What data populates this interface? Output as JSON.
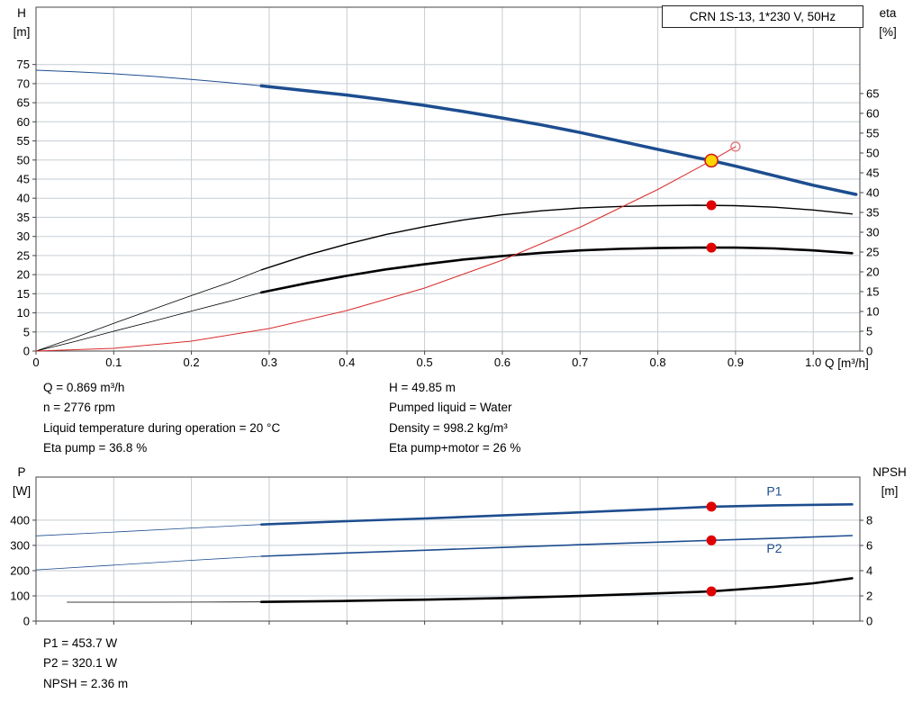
{
  "chart_data": [
    {
      "id": "qh-eta",
      "type": "line",
      "title": "CRN 1S-13, 1*230 V, 50Hz",
      "left_axis_title": [
        "H",
        "[m]"
      ],
      "right_axis_title": [
        "eta",
        "[%]"
      ],
      "x_axis_title": "Q [m³/h]",
      "x": {
        "min": 0,
        "max": 1.06,
        "ticks": [
          0,
          0.1,
          0.2,
          0.3,
          0.4,
          0.5,
          0.6,
          0.7,
          0.8,
          0.9,
          1.0
        ],
        "labels": [
          "0",
          "0.1",
          "0.2",
          "0.3",
          "0.4",
          "0.5",
          "0.6",
          "0.7",
          "0.8",
          "0.9",
          "1.0"
        ]
      },
      "left": {
        "min": 0,
        "max": 90,
        "ticks": [
          0,
          5,
          10,
          15,
          20,
          25,
          30,
          35,
          40,
          45,
          50,
          55,
          60,
          65,
          70,
          75
        ]
      },
      "right": {
        "min": 0,
        "max": 86.8,
        "ticks": [
          0,
          5,
          10,
          15,
          20,
          25,
          30,
          35,
          40,
          45,
          50,
          55,
          60,
          65
        ]
      },
      "series": [
        {
          "name": "pump-curve-lead",
          "axis": "left",
          "color": "#1d4d8f",
          "width": 1,
          "points": [
            [
              0,
              73.5
            ],
            [
              0.05,
              73.1
            ],
            [
              0.1,
              72.6
            ],
            [
              0.15,
              71.9
            ],
            [
              0.2,
              71.1
            ],
            [
              0.25,
              70.2
            ],
            [
              0.29,
              69.4
            ]
          ]
        },
        {
          "name": "pump-curve",
          "axis": "left",
          "color": "#1d4d8f",
          "width": 3.5,
          "points": [
            [
              0.29,
              69.4
            ],
            [
              0.35,
              68.1
            ],
            [
              0.4,
              67.0
            ],
            [
              0.45,
              65.7
            ],
            [
              0.5,
              64.3
            ],
            [
              0.55,
              62.7
            ],
            [
              0.6,
              61.0
            ],
            [
              0.65,
              59.2
            ],
            [
              0.7,
              57.2
            ],
            [
              0.75,
              55.0
            ],
            [
              0.8,
              52.8
            ],
            [
              0.85,
              50.6
            ],
            [
              0.869,
              49.85
            ],
            [
              0.9,
              48.4
            ],
            [
              0.95,
              45.9
            ],
            [
              1.0,
              43.4
            ],
            [
              1.055,
              41.0
            ]
          ]
        },
        {
          "name": "eta-pump-lead",
          "axis": "right",
          "color": "#000000",
          "width": 0.8,
          "points": [
            [
              0,
              0
            ],
            [
              0.05,
              3.4
            ],
            [
              0.1,
              7
            ],
            [
              0.15,
              10.5
            ],
            [
              0.2,
              14
            ],
            [
              0.25,
              17.4
            ],
            [
              0.29,
              20.5
            ]
          ]
        },
        {
          "name": "eta-pump-curve",
          "axis": "right",
          "color": "#000000",
          "width": 1.4,
          "points": [
            [
              0.29,
              20.5
            ],
            [
              0.35,
              24.3
            ],
            [
              0.4,
              27
            ],
            [
              0.45,
              29.4
            ],
            [
              0.5,
              31.4
            ],
            [
              0.55,
              33.1
            ],
            [
              0.6,
              34.4
            ],
            [
              0.65,
              35.4
            ],
            [
              0.7,
              36.1
            ],
            [
              0.75,
              36.5
            ],
            [
              0.8,
              36.7
            ],
            [
              0.85,
              36.8
            ],
            [
              0.9,
              36.7
            ],
            [
              0.95,
              36.3
            ],
            [
              1.0,
              35.6
            ],
            [
              1.05,
              34.6
            ]
          ]
        },
        {
          "name": "eta-pump-motor-lead",
          "axis": "right",
          "color": "#000000",
          "width": 0.8,
          "points": [
            [
              0,
              0
            ],
            [
              0.05,
              2.4
            ],
            [
              0.1,
              5
            ],
            [
              0.15,
              7.5
            ],
            [
              0.2,
              10.1
            ],
            [
              0.25,
              12.6
            ],
            [
              0.29,
              14.8
            ]
          ]
        },
        {
          "name": "eta-pump-motor-curve",
          "axis": "right",
          "color": "#000000",
          "width": 2.6,
          "points": [
            [
              0.29,
              14.8
            ],
            [
              0.35,
              17.2
            ],
            [
              0.4,
              19
            ],
            [
              0.45,
              20.6
            ],
            [
              0.5,
              21.9
            ],
            [
              0.55,
              23.1
            ],
            [
              0.6,
              24
            ],
            [
              0.65,
              24.8
            ],
            [
              0.7,
              25.4
            ],
            [
              0.75,
              25.8
            ],
            [
              0.8,
              26
            ],
            [
              0.85,
              26.1
            ],
            [
              0.9,
              26.1
            ],
            [
              0.95,
              25.9
            ],
            [
              1.0,
              25.4
            ],
            [
              1.05,
              24.7
            ]
          ]
        },
        {
          "name": "system-curve",
          "axis": "left",
          "color": "#d92b2b",
          "width": 1,
          "points": [
            [
              0,
              0
            ],
            [
              0.1,
              0.7
            ],
            [
              0.2,
              2.6
            ],
            [
              0.3,
              5.9
            ],
            [
              0.4,
              10.6
            ],
            [
              0.5,
              16.5
            ],
            [
              0.6,
              23.8
            ],
            [
              0.7,
              32.4
            ],
            [
              0.8,
              42.3
            ],
            [
              0.869,
              49.85
            ],
            [
              0.9,
              53.5
            ]
          ]
        }
      ],
      "markers": [
        {
          "name": "eta-pump-point",
          "x": 0.869,
          "y": 36.8,
          "axis": "right",
          "r": 5.5,
          "fill": "#e00000",
          "stroke": "none",
          "sw": 0
        },
        {
          "name": "eta-pump-motor-point",
          "x": 0.869,
          "y": 26.1,
          "axis": "right",
          "r": 5.5,
          "fill": "#e00000",
          "stroke": "none",
          "sw": 0
        },
        {
          "name": "requested-duty-point",
          "x": 0.9,
          "y": 53.5,
          "axis": "left",
          "r": 5,
          "fill": "none",
          "stroke": "#e57373",
          "sw": 1.3
        },
        {
          "name": "duty-point",
          "x": 0.869,
          "y": 49.85,
          "axis": "left",
          "r": 7,
          "fill": "#ffd500",
          "stroke": "#cc2020",
          "sw": 1.6
        }
      ],
      "labels": []
    },
    {
      "id": "power-npsh",
      "type": "line",
      "left_axis_title": [
        "P",
        "[W]"
      ],
      "right_axis_title": [
        "NPSH",
        "[m]"
      ],
      "x": {
        "min": 0,
        "max": 1.06,
        "ticks": [
          0,
          0.1,
          0.2,
          0.3,
          0.4,
          0.5,
          0.6,
          0.7,
          0.8,
          0.9,
          1.0
        ]
      },
      "left": {
        "min": 0,
        "max": 571,
        "ticks": [
          0,
          100,
          200,
          300,
          400
        ]
      },
      "right": {
        "min": 0,
        "max": 11.43,
        "ticks": [
          0,
          2,
          4,
          6,
          8
        ]
      },
      "series": [
        {
          "name": "p1-lead",
          "axis": "left",
          "color": "#1d4d8f",
          "width": 0.8,
          "points": [
            [
              0,
              338
            ],
            [
              0.1,
              353
            ],
            [
              0.2,
              369
            ],
            [
              0.29,
              383
            ]
          ]
        },
        {
          "name": "p1-curve",
          "axis": "left",
          "color": "#1d4d8f",
          "width": 2.6,
          "points": [
            [
              0.29,
              383
            ],
            [
              0.4,
              396
            ],
            [
              0.5,
              407
            ],
            [
              0.6,
              419
            ],
            [
              0.7,
              431
            ],
            [
              0.8,
              444
            ],
            [
              0.869,
              453.7
            ],
            [
              0.95,
              459
            ],
            [
              1.05,
              463
            ]
          ]
        },
        {
          "name": "p2-lead",
          "axis": "left",
          "color": "#1d4d8f",
          "width": 0.8,
          "points": [
            [
              0,
              203
            ],
            [
              0.1,
              222
            ],
            [
              0.2,
              241
            ],
            [
              0.29,
              257
            ]
          ]
        },
        {
          "name": "p2-curve",
          "axis": "left",
          "color": "#1d4d8f",
          "width": 1.6,
          "points": [
            [
              0.29,
              257
            ],
            [
              0.4,
              270
            ],
            [
              0.5,
              281
            ],
            [
              0.6,
              292
            ],
            [
              0.7,
              303
            ],
            [
              0.8,
              313
            ],
            [
              0.869,
              320.1
            ],
            [
              0.95,
              328
            ],
            [
              1.05,
              339
            ]
          ]
        },
        {
          "name": "npsh-lead",
          "axis": "right",
          "color": "#000000",
          "width": 0.8,
          "points": [
            [
              0.04,
              1.5
            ],
            [
              0.15,
              1.5
            ],
            [
              0.22,
              1.51
            ],
            [
              0.29,
              1.52
            ]
          ]
        },
        {
          "name": "npsh-curve",
          "axis": "right",
          "color": "#000000",
          "width": 2.6,
          "points": [
            [
              0.29,
              1.52
            ],
            [
              0.4,
              1.6
            ],
            [
              0.5,
              1.7
            ],
            [
              0.6,
              1.83
            ],
            [
              0.7,
              1.99
            ],
            [
              0.8,
              2.2
            ],
            [
              0.869,
              2.36
            ],
            [
              0.95,
              2.72
            ],
            [
              1.0,
              3.0
            ],
            [
              1.05,
              3.4
            ]
          ]
        }
      ],
      "markers": [
        {
          "name": "p1-point",
          "x": 0.869,
          "y": 453.7,
          "axis": "left",
          "r": 5.5,
          "fill": "#e00000",
          "stroke": "none",
          "sw": 0
        },
        {
          "name": "p2-point",
          "x": 0.869,
          "y": 320.1,
          "axis": "left",
          "r": 5.5,
          "fill": "#e00000",
          "stroke": "none",
          "sw": 0
        },
        {
          "name": "npsh-point",
          "x": 0.869,
          "y": 2.36,
          "axis": "right",
          "r": 5.5,
          "fill": "#e00000",
          "stroke": "none",
          "sw": 0
        }
      ],
      "labels": [
        {
          "text": "P1",
          "x": 0.94,
          "y": 497,
          "axis": "left",
          "color": "#1d4d8f"
        },
        {
          "text": "P2",
          "x": 0.94,
          "y": 272,
          "axis": "left",
          "color": "#1d4d8f"
        }
      ]
    }
  ],
  "annotations": {
    "mid_left": [
      "Q = 0.869 m³/h",
      "n = 2776 rpm",
      "Liquid temperature during operation = 20 °C",
      "Eta pump = 36.8 %"
    ],
    "mid_right": [
      "H = 49.85 m",
      "Pumped liquid = Water",
      "Density = 998.2 kg/m³",
      "Eta pump+motor = 26 %"
    ],
    "bottom": [
      "P1 = 453.7 W",
      "P2 = 320.1 W",
      "NPSH = 2.36 m"
    ]
  },
  "colors": {
    "pump_blue": "#1d4d8f",
    "curve_black": "#000000",
    "system_red": "#d92b2b",
    "marker_red": "#e00000",
    "duty_yellow": "#ffd500",
    "grid": "#c6cdd4"
  }
}
